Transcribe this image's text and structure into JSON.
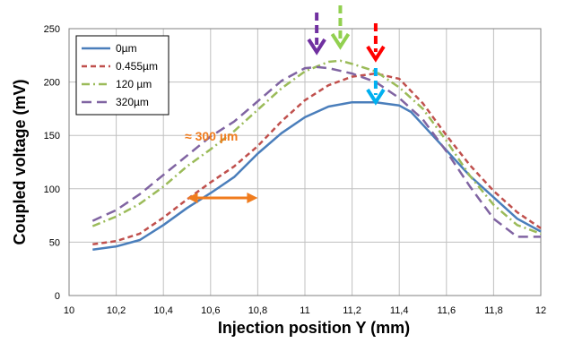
{
  "chart_data": {
    "type": "line",
    "xlabel": "Injection position Y (mm)",
    "ylabel": "Coupled voltage (mV)",
    "xlim": [
      10,
      12
    ],
    "ylim": [
      0,
      250
    ],
    "x_ticks": [
      10,
      10.2,
      10.4,
      10.6,
      10.8,
      11,
      11.2,
      11.4,
      11.6,
      11.8,
      12
    ],
    "x_tick_labels": [
      "10",
      "10,2",
      "10,4",
      "10,6",
      "10,8",
      "11",
      "11,2",
      "11,4",
      "11,6",
      "11,8",
      "12"
    ],
    "y_ticks": [
      0,
      50,
      100,
      150,
      200,
      250
    ],
    "y_tick_labels": [
      "0",
      "50",
      "100",
      "150",
      "200",
      "250"
    ],
    "grid": true,
    "legend_position": "top-left",
    "series": [
      {
        "name": "0µm",
        "color": "#4a7ebb",
        "style": "solid",
        "points": [
          [
            10.1,
            43
          ],
          [
            10.2,
            46
          ],
          [
            10.3,
            52
          ],
          [
            10.4,
            66
          ],
          [
            10.5,
            82
          ],
          [
            10.6,
            96
          ],
          [
            10.7,
            111
          ],
          [
            10.8,
            133
          ],
          [
            10.9,
            152
          ],
          [
            11.0,
            167
          ],
          [
            11.1,
            177
          ],
          [
            11.2,
            181
          ],
          [
            11.3,
            181
          ],
          [
            11.4,
            178
          ],
          [
            11.45,
            172
          ],
          [
            11.5,
            160
          ],
          [
            11.6,
            136
          ],
          [
            11.7,
            112
          ],
          [
            11.8,
            92
          ],
          [
            11.9,
            72
          ],
          [
            12.0,
            60
          ]
        ]
      },
      {
        "name": "0.455µm",
        "color": "#c0504d",
        "style": "dash",
        "points": [
          [
            10.1,
            48
          ],
          [
            10.2,
            51
          ],
          [
            10.3,
            58
          ],
          [
            10.4,
            73
          ],
          [
            10.5,
            90
          ],
          [
            10.6,
            106
          ],
          [
            10.7,
            121
          ],
          [
            10.8,
            140
          ],
          [
            10.9,
            163
          ],
          [
            11.0,
            183
          ],
          [
            11.1,
            197
          ],
          [
            11.2,
            205
          ],
          [
            11.3,
            208
          ],
          [
            11.4,
            203
          ],
          [
            11.5,
            180
          ],
          [
            11.6,
            150
          ],
          [
            11.7,
            122
          ],
          [
            11.8,
            98
          ],
          [
            11.9,
            78
          ],
          [
            12.0,
            63
          ]
        ]
      },
      {
        "name": "120 µm",
        "color": "#9bbb59",
        "style": "dashdot",
        "points": [
          [
            10.1,
            65
          ],
          [
            10.2,
            74
          ],
          [
            10.3,
            86
          ],
          [
            10.4,
            102
          ],
          [
            10.5,
            121
          ],
          [
            10.6,
            137
          ],
          [
            10.7,
            154
          ],
          [
            10.8,
            174
          ],
          [
            10.9,
            194
          ],
          [
            11.0,
            210
          ],
          [
            11.1,
            219
          ],
          [
            11.15,
            220
          ],
          [
            11.2,
            217
          ],
          [
            11.3,
            210
          ],
          [
            11.4,
            195
          ],
          [
            11.5,
            175
          ],
          [
            11.6,
            145
          ],
          [
            11.7,
            112
          ],
          [
            11.8,
            85
          ],
          [
            11.9,
            66
          ],
          [
            12.0,
            58
          ]
        ]
      },
      {
        "name": "320µm",
        "color": "#8064a2",
        "style": "longdash",
        "points": [
          [
            10.1,
            70
          ],
          [
            10.2,
            80
          ],
          [
            10.3,
            95
          ],
          [
            10.4,
            113
          ],
          [
            10.5,
            131
          ],
          [
            10.6,
            149
          ],
          [
            10.7,
            163
          ],
          [
            10.8,
            182
          ],
          [
            10.9,
            201
          ],
          [
            11.0,
            213
          ],
          [
            11.05,
            214
          ],
          [
            11.1,
            213
          ],
          [
            11.2,
            208
          ],
          [
            11.3,
            200
          ],
          [
            11.4,
            185
          ],
          [
            11.5,
            165
          ],
          [
            11.6,
            135
          ],
          [
            11.7,
            102
          ],
          [
            11.8,
            72
          ],
          [
            11.9,
            55
          ],
          [
            12.0,
            55
          ]
        ]
      }
    ],
    "annotations": {
      "span_label": "≈ 300 µm",
      "span_color": "#f07c1e",
      "span_range": [
        10.5,
        10.8
      ],
      "span_y": 130,
      "arrows": [
        {
          "x": 11.05,
          "color": "#7030a0"
        },
        {
          "x": 11.15,
          "color": "#92d050"
        },
        {
          "x": 11.3,
          "color": "#ff0000"
        },
        {
          "x": 11.3,
          "color": "#00b0f0",
          "lower": true
        }
      ]
    }
  }
}
